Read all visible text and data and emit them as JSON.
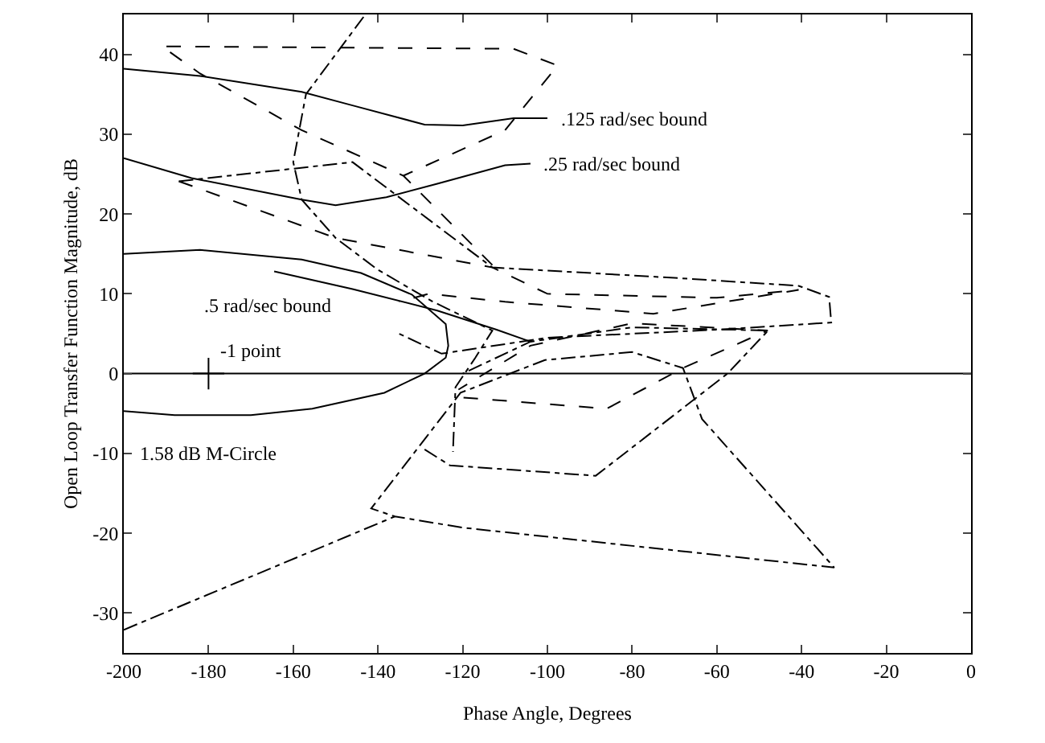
{
  "chart_data": {
    "type": "line",
    "xlabel": "Phase Angle, Degrees",
    "ylabel": "Open Loop Transfer Function Magnitude, dB",
    "xlim": [
      -200,
      0
    ],
    "xticks": [
      -200,
      -180,
      -160,
      -140,
      -120,
      -100,
      -80,
      -60,
      -40,
      -20,
      0
    ],
    "ylim": [
      -35,
      45
    ],
    "yticks": [
      -30,
      -20,
      -10,
      0,
      10,
      20,
      30,
      40
    ],
    "grid": false,
    "marker": "none",
    "ref_lines": [
      {
        "axis": "y",
        "value": 0,
        "color": "#000000",
        "line_style": "solid"
      }
    ],
    "annotations": [
      {
        "text": ".125 rad/sec bound",
        "x": -100,
        "y": 32
      },
      {
        "text": ".25 rad/sec bound",
        "x": -104,
        "y": 26.3
      },
      {
        "text": ".5 rad/sec bound",
        "x": -164.5,
        "y": 12.8
      },
      {
        "text": "-1 point",
        "x": -180,
        "y": 0
      },
      {
        "text": "1.58 dB M-Circle",
        "x": -200,
        "y": -4.7
      }
    ],
    "series": [
      {
        "color": "#000000",
        "line_style": "solid",
        "x": [
          -200,
          -182,
          -158,
          -146,
          -129,
          -120,
          -108,
          -100
        ],
        "values": [
          38.2,
          37.3,
          35.3,
          33.6,
          31.2,
          31.1,
          32,
          32
        ]
      },
      {
        "color": "#000000",
        "line_style": "solid",
        "x": [
          -200,
          -184,
          -158,
          -150,
          -138,
          -126,
          -110,
          -104
        ],
        "values": [
          27,
          24.5,
          21.8,
          21.1,
          22.1,
          23.8,
          26.1,
          26.3
        ]
      },
      {
        "color": "#000000",
        "line_style": "solid",
        "x": [
          -164.5,
          -146,
          -126,
          -112,
          -104
        ],
        "values": [
          12.8,
          10.6,
          7.9,
          5.5,
          4
        ]
      },
      {
        "color": "#000000",
        "line_style": "solid",
        "x": [
          -200,
          -182,
          -158,
          -144,
          -132,
          -124,
          -123.4,
          -124,
          -129,
          -138.5,
          -155.5,
          -170,
          -188,
          -200
        ],
        "values": [
          15,
          15.5,
          14.3,
          12.6,
          9.9,
          6.2,
          3.5,
          2,
          0,
          -2.4,
          -4.4,
          -5.2,
          -5.2,
          -4.7
        ]
      },
      {
        "type": "scatter",
        "marker": "cross",
        "color": "#000000",
        "x": [
          -180
        ],
        "values": [
          0
        ]
      },
      {
        "color": "#000000",
        "line_style": "dashed",
        "x": [
          -113,
          -134,
          -158,
          -182,
          -191,
          -108,
          -97.6,
          -110,
          -134
        ],
        "values": [
          13.6,
          24.8,
          30.5,
          37.6,
          41,
          40.7,
          38.6,
          30.5,
          24.8
        ]
      },
      {
        "color": "#000000",
        "line_style": "dotted",
        "x": [
          -143.4,
          -157,
          -160,
          -158,
          -150,
          -140,
          -127,
          -113,
          -117,
          -121.7,
          -122.3
        ],
        "values": [
          44.7,
          35,
          26.5,
          21.8,
          17,
          13,
          9,
          5.4,
          2,
          -1.7,
          -9.8
        ]
      },
      {
        "color": "#000000",
        "line_style": "dotted",
        "x": [
          -187,
          -146,
          -113,
          -70,
          -40.7,
          -33.5,
          -33,
          -60,
          -100,
          -125,
          -135
        ],
        "values": [
          24.1,
          26.5,
          13.3,
          12,
          11,
          9.6,
          6.4,
          5.5,
          4.5,
          2.5,
          5
        ]
      },
      {
        "color": "#000000",
        "line_style": "dashed",
        "x": [
          -187,
          -150,
          -113,
          -100,
          -60,
          -40.7,
          -75,
          -110,
          -128,
          -135
        ],
        "values": [
          24.1,
          17,
          13.3,
          10,
          9.5,
          10.5,
          7.5,
          9,
          10,
          9
        ]
      },
      {
        "color": "#000000",
        "line_style": "dotted",
        "x": [
          -200,
          -136,
          -120,
          -32.3,
          -63.5,
          -68,
          -80,
          -100.6,
          -120.5,
          -141.6,
          -136
        ],
        "values": [
          -32.1,
          -17.9,
          -19.3,
          -24.3,
          -5.7,
          0.7,
          2.7,
          1.7,
          -2.4,
          -16.9,
          -17.9
        ]
      },
      {
        "color": "#000000",
        "line_style": "dotted",
        "x": [
          -129,
          -123,
          -88.6,
          -57.5,
          -47.9,
          -80,
          -104,
          -120
        ],
        "values": [
          -9.5,
          -11.5,
          -12.8,
          0,
          5.4,
          5.8,
          4,
          0
        ]
      },
      {
        "color": "#000000",
        "line_style": "dashed",
        "x": [
          -119.8,
          -86,
          -68,
          -48,
          -80,
          -104,
          -121
        ],
        "values": [
          -3,
          -4.4,
          0.7,
          5.4,
          6.3,
          3.5,
          -2
        ]
      }
    ]
  }
}
